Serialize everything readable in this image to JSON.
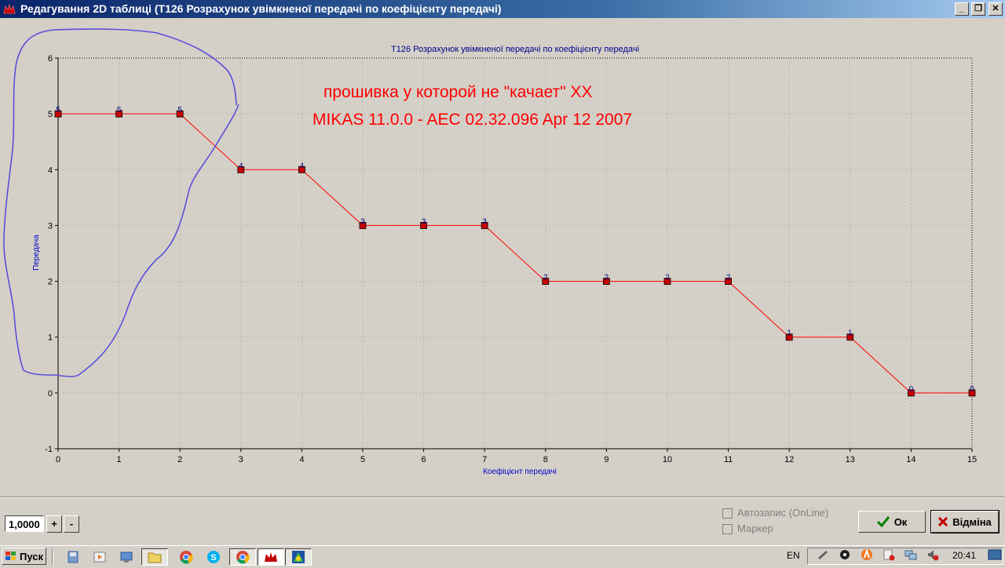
{
  "window": {
    "title": "Редагування 2D таблиці (T126 Розрахунок увімкненої передачі по коефіцієнту передачі)",
    "min_label": "_",
    "max_label": "❐",
    "close_label": "✕"
  },
  "chart_data": {
    "type": "line",
    "title": "T126 Розрахунок увімкненої передачі по коефіцієнту передачі",
    "xlabel": "Коефіцієнт передачі",
    "ylabel": "Передача",
    "x": [
      0,
      1,
      2,
      3,
      4,
      5,
      6,
      7,
      8,
      9,
      10,
      11,
      12,
      13,
      14,
      15
    ],
    "values": [
      5,
      5,
      5,
      4,
      4,
      3,
      3,
      3,
      2,
      2,
      2,
      2,
      1,
      1,
      0,
      0
    ],
    "x_ticks": [
      "0",
      "1",
      "2",
      "3",
      "4",
      "5",
      "6",
      "7",
      "8",
      "9",
      "10",
      "11",
      "12",
      "13",
      "14",
      "15"
    ],
    "y_ticks": [
      "-1",
      "0",
      "1",
      "2",
      "3",
      "4",
      "5",
      "6"
    ],
    "xlim": [
      0,
      15
    ],
    "ylim": [
      -1,
      6
    ],
    "grid": true,
    "line_color": "#ff0000",
    "marker_color": "#cc0000",
    "label_color": "#000080",
    "annotations": [
      "прошивка у которой не \"качает\" XX",
      "MIKAS 11.0.0 - AEC 02.32.096  Apr 12 2007"
    ],
    "annotation_color": "#ff0000"
  },
  "controls": {
    "step_value": "1,0000",
    "plus_label": "+",
    "minus_label": "-",
    "autosave_label": "Автозапис (OnLine)",
    "marker_label": "Маркер",
    "ok_label": "Ок",
    "cancel_label": "Відміна"
  },
  "taskbar": {
    "start_label": "Пуск",
    "language": "EN",
    "clock": "20:41"
  }
}
